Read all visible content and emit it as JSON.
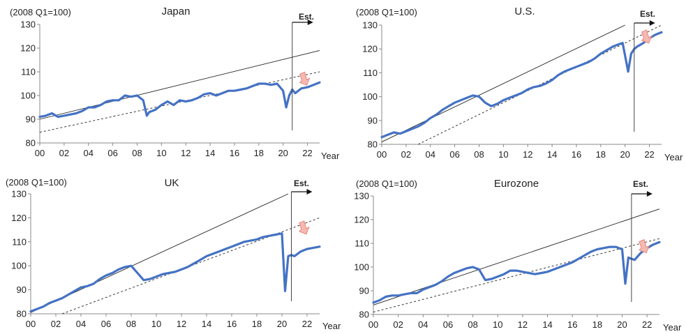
{
  "chart_data": [
    {
      "type": "line",
      "title": "Japan",
      "subtitle": "(2008 Q1=100)",
      "xlabel": "Year",
      "ylabel": "",
      "ylim": [
        80,
        130
      ],
      "yticks": [
        80,
        90,
        100,
        110,
        120,
        130
      ],
      "xlim": [
        0,
        23
      ],
      "xticks": [
        "00",
        "02",
        "04",
        "06",
        "08",
        "10",
        "12",
        "14",
        "16",
        "18",
        "20",
        "22"
      ],
      "annotation": "Est.",
      "est_start": 20.75,
      "actual_series": {
        "x": [
          0,
          0.5,
          1,
          1.5,
          2,
          2.5,
          3,
          3.5,
          4,
          4.5,
          5,
          5.5,
          6,
          6.5,
          7,
          7.5,
          8,
          8.5,
          8.8,
          9,
          9.5,
          10,
          10.5,
          11,
          11.5,
          12,
          12.5,
          13,
          13.5,
          14,
          14.5,
          15,
          15.5,
          16,
          16.5,
          17,
          17.5,
          18,
          18.5,
          19,
          19.5,
          20,
          20.25,
          20.5,
          20.75
        ],
        "y": [
          91,
          91.5,
          92.5,
          91,
          91.5,
          92,
          92.5,
          93.5,
          95,
          95,
          96,
          97.5,
          98,
          98,
          100,
          99.5,
          100,
          98,
          91.5,
          93,
          94,
          96,
          97.5,
          96,
          98,
          97.5,
          98,
          99,
          100.5,
          101,
          100,
          101,
          102,
          102,
          102.5,
          103,
          104,
          105,
          105,
          104.5,
          105,
          102,
          95,
          100,
          102.5
        ]
      },
      "projection_series": {
        "x": [
          20.75,
          21,
          21.5,
          22,
          22.5,
          23
        ],
        "y": [
          102.5,
          101,
          103,
          103.5,
          104.5,
          105.5
        ]
      },
      "trend_pre2008": {
        "x": [
          0,
          23
        ],
        "y": [
          90,
          119
        ]
      },
      "trend_post2008": {
        "x": [
          0,
          23
        ],
        "y": [
          84.5,
          110
        ]
      }
    },
    {
      "type": "line",
      "title": "U.S.",
      "subtitle": "(2008 Q1=100)",
      "xlabel": "Year",
      "ylabel": "",
      "ylim": [
        80,
        130
      ],
      "yticks": [
        80,
        90,
        100,
        110,
        120,
        130
      ],
      "xlim": [
        0,
        23
      ],
      "xticks": [
        "00",
        "02",
        "04",
        "06",
        "08",
        "10",
        "12",
        "14",
        "16",
        "18",
        "20",
        "22"
      ],
      "annotation": "Est.",
      "est_start": 20.75,
      "actual_series": {
        "x": [
          0,
          0.5,
          1,
          1.5,
          2,
          2.5,
          3,
          3.5,
          4,
          4.5,
          5,
          5.5,
          6,
          6.5,
          7,
          7.5,
          8,
          8.5,
          9,
          9.5,
          10,
          10.5,
          11,
          11.5,
          12,
          12.5,
          13,
          13.5,
          14,
          14.5,
          15,
          15.5,
          16,
          16.5,
          17,
          17.5,
          18,
          18.5,
          19,
          19.5,
          19.8,
          20.25,
          20.5,
          20.75
        ],
        "y": [
          83,
          84,
          85,
          84.5,
          85.5,
          86.5,
          87.5,
          89,
          91,
          92.5,
          94.5,
          96,
          97.5,
          98.5,
          99.5,
          100.5,
          100,
          97.5,
          96,
          97,
          98.5,
          99.5,
          100.5,
          101.5,
          103,
          104,
          104.5,
          105.5,
          107,
          109,
          110.5,
          111.5,
          112.5,
          113.5,
          114.5,
          116,
          118,
          119.5,
          121,
          122,
          122.5,
          110.5,
          118,
          120
        ]
      },
      "projection_series": {
        "x": [
          20.75,
          21,
          21.5,
          22,
          22.5,
          23
        ],
        "y": [
          120,
          121,
          122.5,
          124.5,
          126,
          127
        ]
      },
      "trend_pre2008": {
        "x": [
          0,
          20
        ],
        "y": [
          81,
          130
        ]
      },
      "trend_post2008": {
        "x": [
          3,
          23
        ],
        "y": [
          80,
          130
        ]
      }
    },
    {
      "type": "line",
      "title": "UK",
      "subtitle": "(2008 Q1=100)",
      "xlabel": "Year",
      "ylabel": "",
      "ylim": [
        80,
        130
      ],
      "yticks": [
        80,
        90,
        100,
        110,
        120,
        130
      ],
      "xlim": [
        0,
        23
      ],
      "xticks": [
        "00",
        "02",
        "04",
        "06",
        "08",
        "10",
        "12",
        "14",
        "16",
        "18",
        "20",
        "22"
      ],
      "annotation": "Est.",
      "est_start": 20.75,
      "actual_series": {
        "x": [
          0,
          0.5,
          1,
          1.5,
          2,
          2.5,
          3,
          3.5,
          4,
          4.5,
          5,
          5.5,
          6,
          6.5,
          7,
          7.5,
          8,
          8.5,
          9,
          9.5,
          10,
          10.5,
          11,
          11.5,
          12,
          12.5,
          13,
          13.5,
          14,
          14.5,
          15,
          15.5,
          16,
          16.5,
          17,
          17.5,
          18,
          18.5,
          19,
          19.5,
          20,
          20.25,
          20.5,
          20.75
        ],
        "y": [
          81,
          82,
          83,
          84.5,
          85.5,
          86.5,
          88,
          89.5,
          91,
          91.5,
          92.5,
          94.5,
          96,
          97,
          98.5,
          99.5,
          100,
          97,
          94,
          94.5,
          95.5,
          96.5,
          97,
          97.5,
          98.5,
          99.5,
          101,
          102.5,
          104,
          105,
          106,
          107,
          108,
          109,
          110,
          110.5,
          111,
          112,
          112.5,
          113,
          113.5,
          89.5,
          104,
          104.5
        ]
      },
      "projection_series": {
        "x": [
          20.75,
          21,
          21.5,
          22,
          22.5,
          23
        ],
        "y": [
          104.5,
          104,
          106,
          107,
          107.5,
          108
        ]
      },
      "trend_pre2008": {
        "x": [
          0,
          20.5
        ],
        "y": [
          80.5,
          130
        ]
      },
      "trend_post2008": {
        "x": [
          2.5,
          23
        ],
        "y": [
          80,
          120
        ]
      }
    },
    {
      "type": "line",
      "title": "Eurozone",
      "subtitle": "(2008 Q1=100)",
      "xlabel": "Year",
      "ylabel": "",
      "ylim": [
        80,
        130
      ],
      "yticks": [
        80,
        90,
        100,
        110,
        120,
        130
      ],
      "xlim": [
        0,
        23
      ],
      "xticks": [
        "00",
        "02",
        "04",
        "06",
        "08",
        "10",
        "12",
        "14",
        "16",
        "18",
        "20",
        "22"
      ],
      "annotation": "Est.",
      "est_start": 20.75,
      "actual_series": {
        "x": [
          0,
          0.5,
          1,
          1.5,
          2,
          2.5,
          3,
          3.5,
          4,
          4.5,
          5,
          5.5,
          6,
          6.5,
          7,
          7.5,
          8,
          8.5,
          9,
          9.5,
          10,
          10.5,
          11,
          11.5,
          12,
          12.5,
          13,
          13.5,
          14,
          14.5,
          15,
          15.5,
          16,
          16.5,
          17,
          17.5,
          18,
          18.5,
          19,
          19.5,
          20,
          20.25,
          20.5,
          20.75
        ],
        "y": [
          85,
          86,
          87.5,
          88,
          88,
          88.5,
          89,
          89,
          90.5,
          91.5,
          92.5,
          94,
          96,
          97.5,
          98.5,
          99.5,
          100,
          99,
          94.5,
          95,
          96,
          97,
          98.5,
          98.5,
          98,
          97.5,
          97,
          97.5,
          98,
          99,
          100,
          101,
          102,
          103.5,
          105,
          106.5,
          107.5,
          108,
          108.5,
          108.5,
          107.5,
          93,
          104,
          103.5
        ]
      },
      "projection_series": {
        "x": [
          20.75,
          21,
          21.5,
          22,
          22.5,
          23
        ],
        "y": [
          103.5,
          103,
          106,
          108,
          109.5,
          110.5
        ]
      },
      "trend_pre2008": {
        "x": [
          0,
          23
        ],
        "y": [
          84,
          124.5
        ]
      },
      "trend_post2008": {
        "x": [
          0,
          23
        ],
        "y": [
          81,
          112
        ]
      }
    }
  ]
}
